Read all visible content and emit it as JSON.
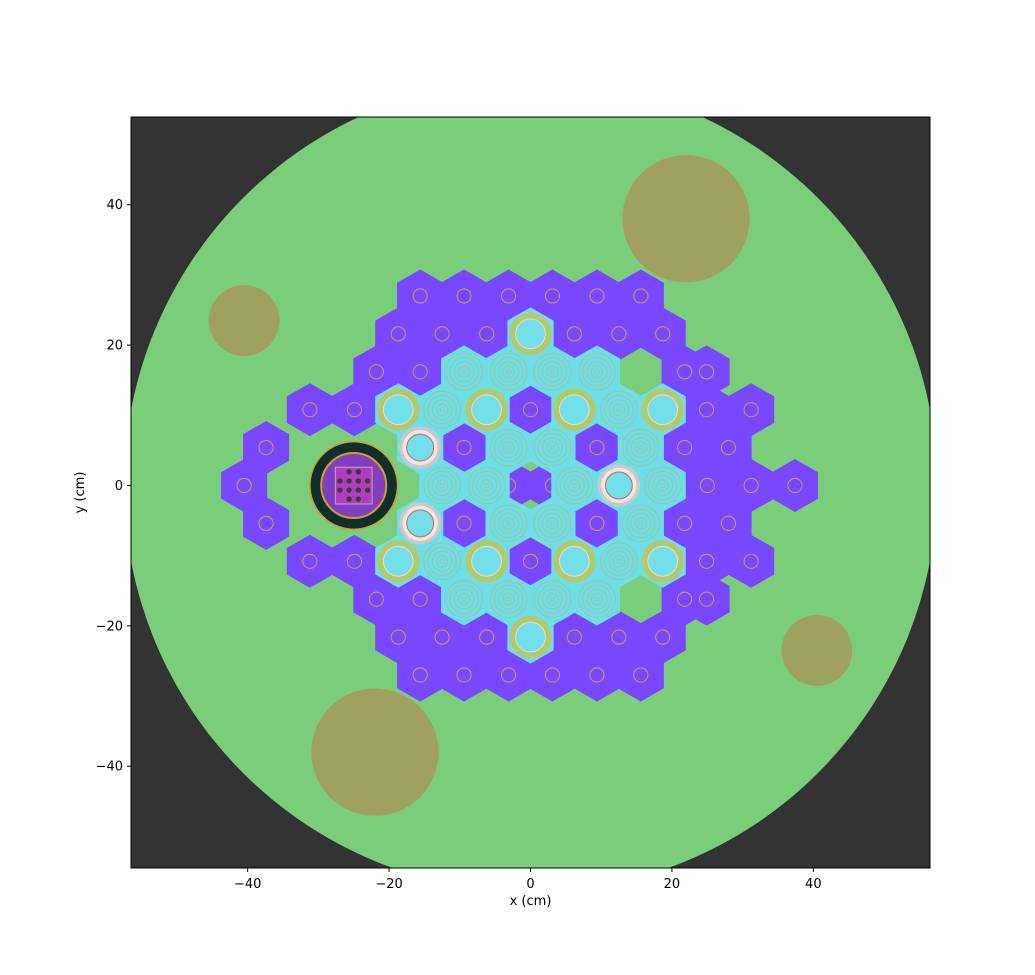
{
  "figure": {
    "xlabel": "x (cm)",
    "ylabel": "y (cm)",
    "xlim": [
      -56.5,
      56.5
    ],
    "ylim": [
      -54.5,
      52.5
    ],
    "x_ticks": [
      -40,
      -20,
      0,
      20,
      40
    ],
    "y_ticks": [
      -40,
      -20,
      0,
      20,
      40
    ],
    "x_tick_labels": [
      "−40",
      "−20",
      "0",
      "20",
      "40"
    ],
    "y_tick_labels": [
      "−40",
      "−20",
      "0",
      "20",
      "40"
    ]
  },
  "colors": {
    "background_outside": "#333333",
    "reflector_water": "#7ACD79",
    "fuel_hex": "#7947FF",
    "moderator_hex": "#6EDFE6",
    "fuel_pin_ring": "#C7A23E",
    "moderator_rings": "#9FC4A6",
    "water_hole": "#72DFEA",
    "water_hole_ring": "#B3C96E",
    "experiment_pipe_fill": "#F2E4E4",
    "experiment_pipe_ring": "#C9C9C9",
    "channel_outer": "#0F2F2F",
    "channel_ring": "#D39E26",
    "channel_inner": "#7F3FBF",
    "channel_square": "#B23CC0",
    "channel_pin": "#3C3C3C",
    "absorber_rod": "#A0A060"
  },
  "chart_data": {
    "type": "geometry",
    "domain_radius_cm": 57.5,
    "hex_pitch_cm": 6.3,
    "fuel_hex_centers": [
      [
        -15.6,
        27
      ],
      [
        -9.4,
        27
      ],
      [
        -3.1,
        27
      ],
      [
        3.1,
        27
      ],
      [
        9.4,
        27
      ],
      [
        15.6,
        27
      ],
      [
        -18.7,
        21.6
      ],
      [
        -12.5,
        21.6
      ],
      [
        -6.2,
        21.6
      ],
      [
        6.2,
        21.6
      ],
      [
        12.5,
        21.6
      ],
      [
        18.7,
        21.6
      ],
      [
        -21.8,
        16.2
      ],
      [
        -15.6,
        16.2
      ],
      [
        21.8,
        16.2
      ],
      [
        24.9,
        16.2
      ],
      [
        -31.2,
        10.8
      ],
      [
        -24.9,
        10.8
      ],
      [
        0,
        10.8
      ],
      [
        24.9,
        10.8
      ],
      [
        31.2,
        10.8
      ],
      [
        -37.4,
        5.4
      ],
      [
        -9.4,
        5.4
      ],
      [
        9.4,
        5.4
      ],
      [
        21.8,
        5.4
      ],
      [
        28,
        5.4
      ],
      [
        -40.5,
        0
      ],
      [
        -3.1,
        0
      ],
      [
        3.1,
        0
      ],
      [
        25,
        0
      ],
      [
        31.2,
        0
      ],
      [
        37.4,
        0
      ],
      [
        -37.4,
        -5.4
      ],
      [
        -9.4,
        -5.4
      ],
      [
        9.4,
        -5.4
      ],
      [
        21.8,
        -5.4
      ],
      [
        28,
        -5.4
      ],
      [
        -31.2,
        -10.8
      ],
      [
        -24.9,
        -10.8
      ],
      [
        0,
        -10.8
      ],
      [
        24.9,
        -10.8
      ],
      [
        31.2,
        -10.8
      ],
      [
        -21.8,
        -16.2
      ],
      [
        -15.6,
        -16.2
      ],
      [
        21.8,
        -16.2
      ],
      [
        24.9,
        -16.2
      ],
      [
        -18.7,
        -21.6
      ],
      [
        -12.5,
        -21.6
      ],
      [
        -6.2,
        -21.6
      ],
      [
        6.2,
        -21.6
      ],
      [
        12.5,
        -21.6
      ],
      [
        18.7,
        -21.6
      ],
      [
        -15.6,
        -27
      ],
      [
        -9.4,
        -27
      ],
      [
        -3.1,
        -27
      ],
      [
        3.1,
        -27
      ],
      [
        9.4,
        -27
      ],
      [
        15.6,
        -27
      ]
    ],
    "moderator_hex_centers": [
      [
        -9.4,
        16.2
      ],
      [
        -3.1,
        16.2
      ],
      [
        3.1,
        16.2
      ],
      [
        9.4,
        16.2
      ],
      [
        -12.5,
        10.8
      ],
      [
        12.5,
        10.8
      ],
      [
        -3.1,
        5.4
      ],
      [
        3.1,
        5.4
      ],
      [
        15.6,
        5.4
      ],
      [
        -12.5,
        0
      ],
      [
        -6.2,
        0
      ],
      [
        6.2,
        0
      ],
      [
        18.7,
        0
      ],
      [
        -3.1,
        -5.4
      ],
      [
        3.1,
        -5.4
      ],
      [
        15.6,
        -5.4
      ],
      [
        -12.5,
        -10.8
      ],
      [
        12.5,
        -10.8
      ],
      [
        -9.4,
        -16.2
      ],
      [
        -3.1,
        -16.2
      ],
      [
        3.1,
        -16.2
      ],
      [
        9.4,
        -16.2
      ]
    ],
    "water_hole_centers": [
      [
        0,
        21.6
      ],
      [
        -18.7,
        10.8
      ],
      [
        -6.2,
        10.8
      ],
      [
        6.2,
        10.8
      ],
      [
        18.7,
        10.8
      ],
      [
        -18.7,
        -10.8
      ],
      [
        -6.2,
        -10.8
      ],
      [
        6.2,
        -10.8
      ],
      [
        18.7,
        -10.8
      ],
      [
        0,
        -21.6
      ]
    ],
    "experiment_pipe_centers": [
      [
        -15.6,
        5.4
      ],
      [
        -15.6,
        -5.4
      ],
      [
        12.5,
        0
      ]
    ],
    "irradiation_channel": {
      "center": [
        -25,
        0
      ],
      "outer_radius_cm": 6.2,
      "ring_radius_cm": 4.6
    },
    "absorber_rods": [
      {
        "center": [
          22,
          38
        ],
        "radius_cm": 9
      },
      {
        "center": [
          -22,
          -38
        ],
        "radius_cm": 9
      },
      {
        "center": [
          -40.5,
          23.5
        ],
        "radius_cm": 5
      },
      {
        "center": [
          40.5,
          -23.5
        ],
        "radius_cm": 5
      }
    ]
  }
}
